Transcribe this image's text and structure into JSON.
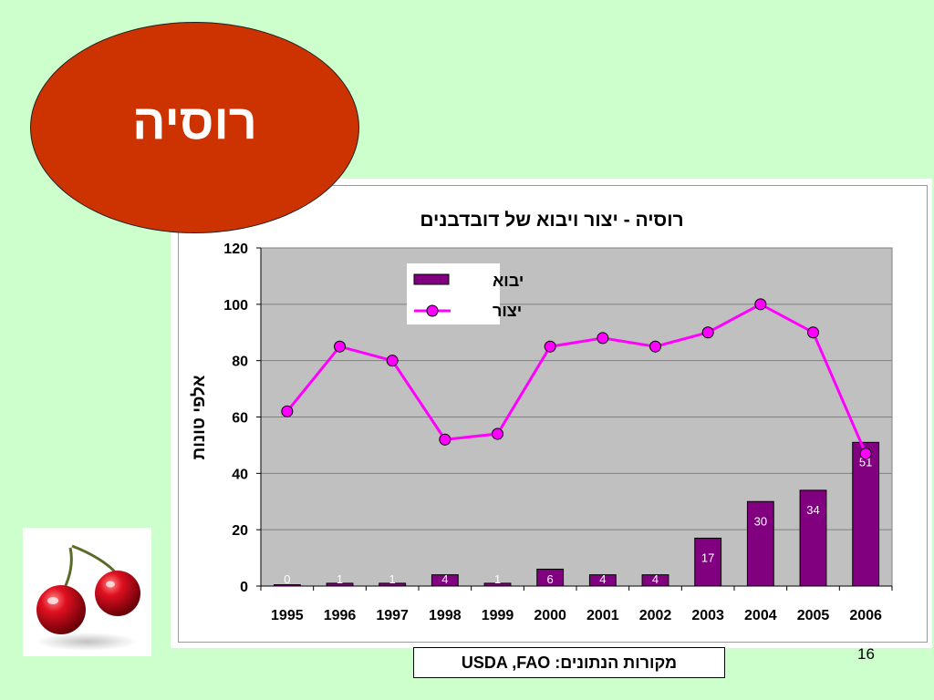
{
  "slide": {
    "title": "רוסיה",
    "source_note": "מקורות הנתונים: USDA ,FAO",
    "page_number": "16"
  },
  "colors": {
    "background": "#ccffcc",
    "title_oval": "#cc3300",
    "bar": "#800080",
    "line": "#ff00ff",
    "plot_area": "#c0c0c0"
  },
  "chart_data": {
    "type": "bar",
    "title": "רוסיה - יצור ויבוא של דובדבנים",
    "ylabel": "אלפי טונות",
    "xlabel": "",
    "ylim": [
      0,
      120
    ],
    "yticks": [
      0,
      20,
      40,
      60,
      80,
      100,
      120
    ],
    "grid": true,
    "legend_position": "top-left",
    "categories": [
      "1995",
      "1996",
      "1997",
      "1998",
      "1999",
      "2000",
      "2001",
      "2002",
      "2003",
      "2004",
      "2005",
      "2006"
    ],
    "series": [
      {
        "name": "יבוא",
        "kind": "bar",
        "values": [
          0,
          1,
          1,
          4,
          1,
          6,
          4,
          4,
          17,
          30,
          34,
          51
        ],
        "labels": [
          "0",
          "1",
          "1",
          "4",
          "1",
          "6",
          "4",
          "4",
          "17",
          "30",
          "34",
          "51"
        ]
      },
      {
        "name": "יצור",
        "kind": "line",
        "values": [
          62,
          85,
          80,
          52,
          54,
          85,
          88,
          85,
          90,
          100,
          90,
          47
        ]
      }
    ]
  }
}
